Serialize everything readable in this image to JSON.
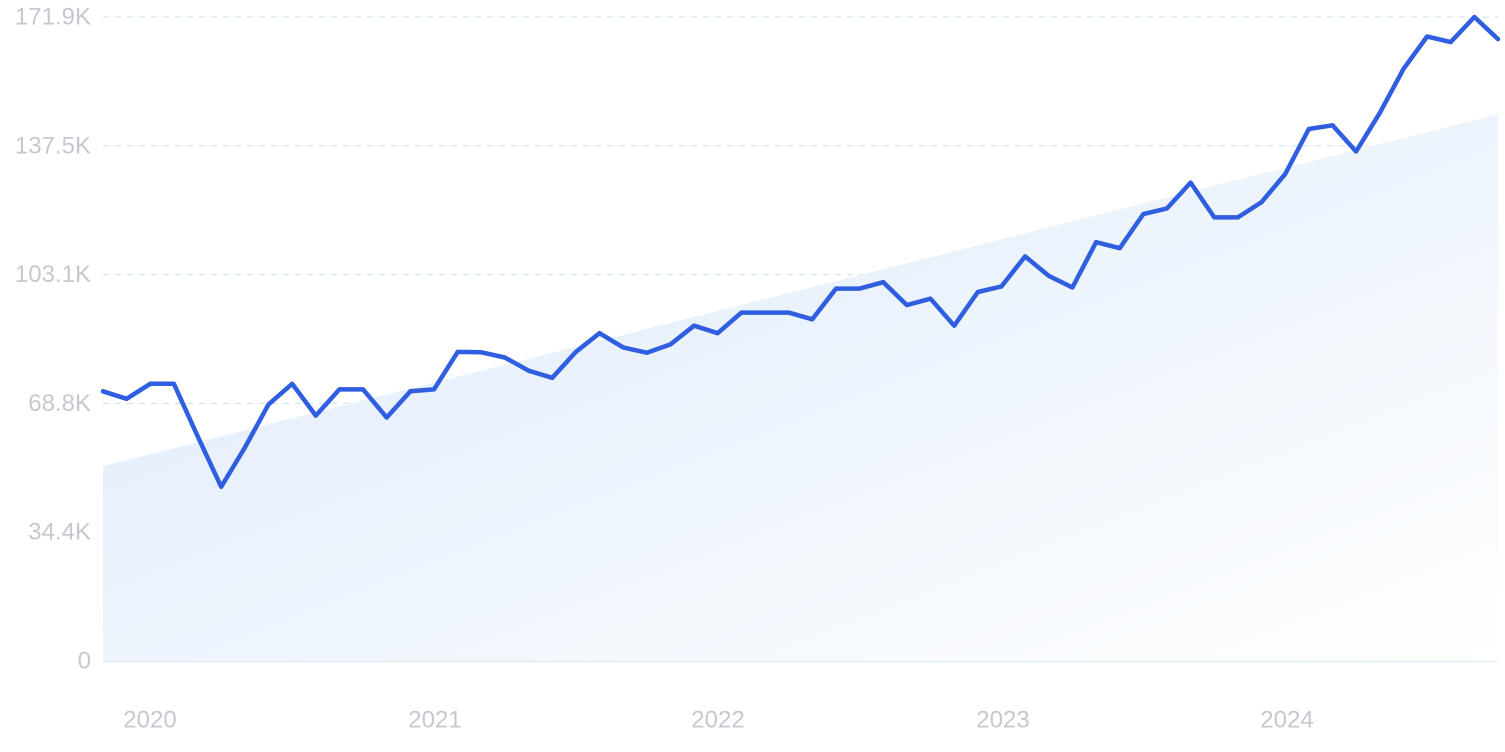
{
  "colors": {
    "line": "#2f5ee0",
    "trend_fill_start": "#dbe9fa",
    "trend_fill_end": "#ffffff",
    "grid": "#cfe6f2",
    "tick_text": "#c4c9d0"
  },
  "chart_data": {
    "type": "line",
    "title": "",
    "xlabel": "",
    "ylabel": "",
    "grid": true,
    "legend": "none",
    "x_ticks": [
      "2020",
      "2021",
      "2022",
      "2023",
      "2024"
    ],
    "y_ticks": [
      "0",
      "34.4K",
      "68.8K",
      "103.1K",
      "137.5K",
      "171.9K"
    ],
    "ylim": [
      0,
      171900
    ],
    "xlim": [
      "2019-11",
      "2024-10"
    ],
    "series": [
      {
        "x": [
          "2019-11",
          "2019-12",
          "2020-01",
          "2020-02",
          "2020-03",
          "2020-04",
          "2020-05",
          "2020-06",
          "2020-07",
          "2020-08",
          "2020-09",
          "2020-10",
          "2020-11",
          "2020-12",
          "2021-01",
          "2021-02",
          "2021-03",
          "2021-04",
          "2021-05",
          "2021-06",
          "2021-07",
          "2021-08",
          "2021-09",
          "2021-10",
          "2021-11",
          "2021-12",
          "2022-01",
          "2022-02",
          "2022-03",
          "2022-04",
          "2022-05",
          "2022-06",
          "2022-07",
          "2022-08",
          "2022-09",
          "2022-10",
          "2022-11",
          "2022-12",
          "2023-01",
          "2023-02",
          "2023-03",
          "2023-04",
          "2023-05",
          "2023-06",
          "2023-07",
          "2023-08",
          "2023-09",
          "2023-10",
          "2023-11",
          "2023-12",
          "2024-01",
          "2024-02",
          "2024-03",
          "2024-04",
          "2024-05",
          "2024-06",
          "2024-07",
          "2024-08",
          "2024-09",
          "2024-10"
        ],
        "values": [
          72000,
          70000,
          74000,
          74000,
          60000,
          46500,
          57000,
          68500,
          74000,
          65500,
          72500,
          72500,
          65000,
          72000,
          72500,
          82500,
          82400,
          81000,
          77500,
          75600,
          82500,
          87500,
          83700,
          82300,
          84500,
          89500,
          87500,
          93000,
          93000,
          93000,
          91200,
          99400,
          99400,
          101100,
          95000,
          96700,
          89500,
          98500,
          100000,
          108000,
          102800,
          99700,
          111800,
          110200,
          119300,
          120800,
          127700,
          118400,
          118400,
          122500,
          130000,
          142000,
          143000,
          136000,
          146300,
          158000,
          166700,
          165200,
          171900,
          166000
        ]
      }
    ],
    "trend": {
      "start": {
        "x": "2019-11",
        "y": 52000
      },
      "end": {
        "x": "2024-10",
        "y": 146000
      }
    }
  }
}
